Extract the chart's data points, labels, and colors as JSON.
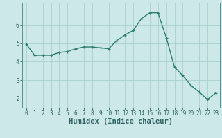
{
  "x": [
    0,
    1,
    2,
    3,
    4,
    5,
    6,
    7,
    8,
    9,
    10,
    11,
    12,
    13,
    14,
    15,
    16,
    17,
    18,
    19,
    20,
    21,
    22,
    23
  ],
  "y": [
    4.95,
    4.35,
    4.35,
    4.35,
    4.5,
    4.55,
    4.7,
    4.8,
    4.8,
    4.75,
    4.7,
    5.15,
    5.45,
    5.7,
    6.35,
    6.65,
    6.65,
    5.3,
    3.7,
    3.25,
    2.7,
    2.35,
    1.95,
    2.3
  ],
  "xlabel": "Humidex (Indice chaleur)",
  "ylim": [
    1.5,
    7.2
  ],
  "xlim": [
    -0.5,
    23.5
  ],
  "yticks": [
    2,
    3,
    4,
    5,
    6
  ],
  "xticks": [
    0,
    1,
    2,
    3,
    4,
    5,
    6,
    7,
    8,
    9,
    10,
    11,
    12,
    13,
    14,
    15,
    16,
    17,
    18,
    19,
    20,
    21,
    22,
    23
  ],
  "line_color": "#2e7d6e",
  "marker": "+",
  "bg_color": "#cce8e8",
  "grid_color": "#aacfcf",
  "tick_label_fontsize": 5.5,
  "xlabel_fontsize": 7.5,
  "marker_size": 3.5,
  "line_width": 1.0,
  "xlabel_color": "#2e6060",
  "tick_color": "#2e6060",
  "spine_color": "#5a9090"
}
